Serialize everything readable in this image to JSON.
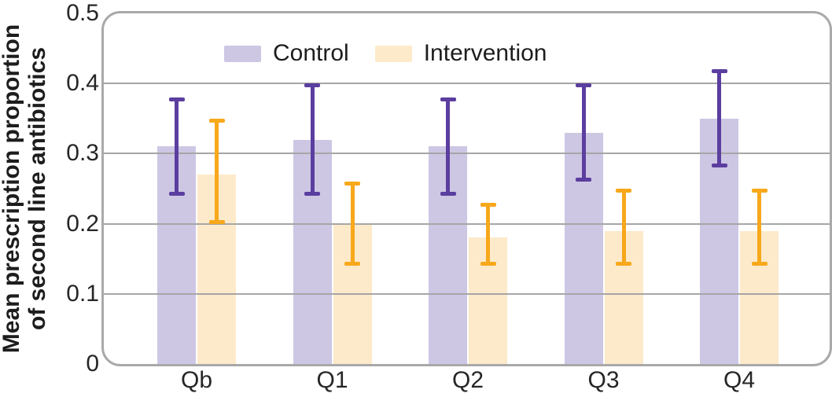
{
  "chart_data": {
    "type": "bar",
    "title": "",
    "ylabel": "Mean prescription proportion of second line antibiotics",
    "ylabel_lines": [
      "Mean prescription proportion",
      "of second line antibiotics"
    ],
    "xlabel": "",
    "categories": [
      "Qb",
      "Q1",
      "Q2",
      "Q3",
      "Q4"
    ],
    "series": [
      {
        "name": "Control",
        "bar_color": "#cdc7e4",
        "error_color": "#5b3e9f",
        "values": [
          0.31,
          0.32,
          0.31,
          0.33,
          0.35
        ],
        "error_low": [
          0.24,
          0.24,
          0.24,
          0.26,
          0.28
        ],
        "error_high": [
          0.38,
          0.4,
          0.38,
          0.4,
          0.42
        ]
      },
      {
        "name": "Intervention",
        "bar_color": "#fdeaca",
        "error_color": "#f7a81b",
        "values": [
          0.27,
          0.2,
          0.18,
          0.19,
          0.19
        ],
        "error_low": [
          0.2,
          0.14,
          0.14,
          0.14,
          0.14
        ],
        "error_high": [
          0.35,
          0.26,
          0.23,
          0.25,
          0.25
        ]
      }
    ],
    "ylim": [
      0,
      0.5
    ],
    "ytick_labels": [
      "0",
      "0.1",
      "0.2",
      "0.3",
      "0.4",
      "0.5"
    ],
    "ytick_values": [
      0,
      0.1,
      0.2,
      0.3,
      0.4,
      0.5
    ],
    "grid": true,
    "gridline_color": "#a6a6a6",
    "frame_color": "#a9a9a9",
    "legend_position": "top-left"
  }
}
